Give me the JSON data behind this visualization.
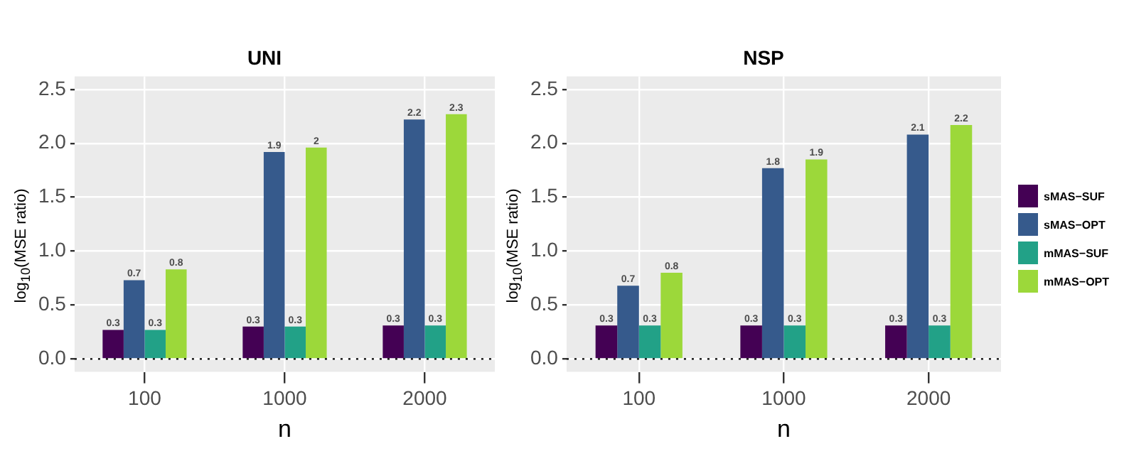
{
  "chart_data": [
    {
      "type": "bar",
      "title": "UNI",
      "xlabel": "n",
      "ylabel": "log$_{10}$(MSE  ratio)",
      "categories": [
        "100",
        "1000",
        "2000"
      ],
      "series": [
        {
          "color": "#440154",
          "values": [
            0.27,
            0.3,
            0.31
          ],
          "value_labels": [
            "0.3",
            "0.3",
            "0.3"
          ]
        },
        {
          "color": "#365a8c",
          "values": [
            0.73,
            1.92,
            2.22
          ],
          "value_labels": [
            "0.7",
            "1.9",
            "2.2"
          ]
        },
        {
          "color": "#22a187",
          "values": [
            0.27,
            0.3,
            0.31
          ],
          "value_labels": [
            "0.3",
            "0.3",
            "0.3"
          ]
        },
        {
          "color": "#9cd83a",
          "values": [
            0.83,
            1.96,
            2.27
          ],
          "value_labels": [
            "0.8",
            "2",
            "2.3"
          ]
        }
      ],
      "ylim": [
        -0.12,
        2.62
      ],
      "yticks": [
        {
          "value": 0,
          "label": "0.0"
        },
        0.5,
        {
          "value": 1,
          "label": "1.0"
        },
        1.5,
        {
          "value": 2,
          "label": "2.0"
        },
        2.5
      ],
      "ref_lines": [
        {
          "axis": "y",
          "value": 0,
          "line_style": "dotted",
          "color": "#000000"
        }
      ],
      "grid": true,
      "legend": false
    },
    {
      "type": "bar",
      "title": "NSP",
      "xlabel": "n",
      "ylabel": "log$_{10}$(MSE  ratio)",
      "categories": [
        "100",
        "1000",
        "2000"
      ],
      "series": [
        {
          "name": "sMAS−SUF",
          "color": "#440154",
          "values": [
            0.31,
            0.31,
            0.31
          ],
          "value_labels": [
            "0.3",
            "0.3",
            "0.3"
          ]
        },
        {
          "name": "sMAS−OPT",
          "color": "#365a8c",
          "values": [
            0.68,
            1.77,
            2.08
          ],
          "value_labels": [
            "0.7",
            "1.8",
            "2.1"
          ]
        },
        {
          "name": "mMAS−SUF",
          "color": "#22a187",
          "values": [
            0.31,
            0.31,
            0.31
          ],
          "value_labels": [
            "0.3",
            "0.3",
            "0.3"
          ]
        },
        {
          "name": "mMAS−OPT",
          "color": "#9cd83a",
          "values": [
            0.8,
            1.85,
            2.17
          ],
          "value_labels": [
            "0.8",
            "1.9",
            "2.2"
          ]
        }
      ],
      "ylim": [
        -0.12,
        2.62
      ],
      "yticks": [
        {
          "value": 0,
          "label": "0.0"
        },
        0.5,
        {
          "value": 1,
          "label": "1.0"
        },
        1.5,
        {
          "value": 2,
          "label": "2.0"
        },
        2.5
      ],
      "ref_lines": [
        {
          "axis": "y",
          "value": 0,
          "line_style": "dotted",
          "color": "#000000"
        }
      ],
      "grid": true,
      "legend": "right"
    }
  ]
}
